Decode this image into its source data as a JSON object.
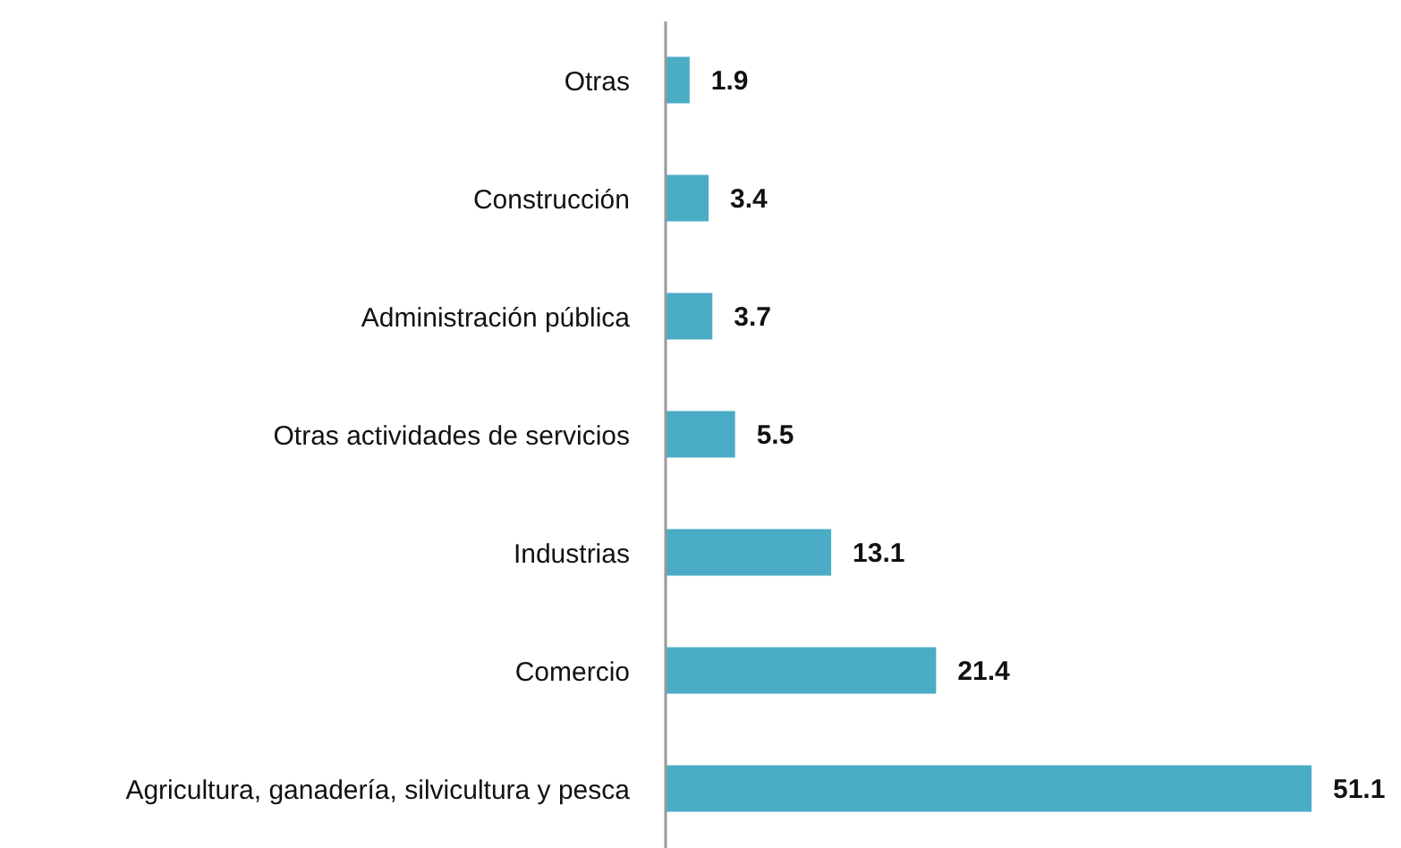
{
  "chart_data": {
    "type": "bar",
    "orientation": "horizontal",
    "categories": [
      "Otras",
      "Construcción",
      "Administración pública",
      "Otras actividades de servicios",
      "Industrias",
      "Comercio",
      "Agricultura, ganadería, silvicultura y pesca"
    ],
    "values": [
      1.9,
      3.4,
      3.7,
      5.5,
      13.1,
      21.4,
      51.1
    ],
    "color": "#4bacc6",
    "data_labels": true
  }
}
